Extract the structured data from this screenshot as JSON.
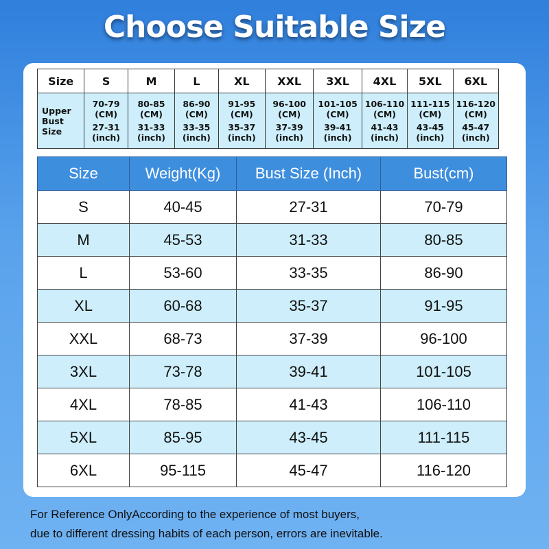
{
  "title": "Choose Suitable Size",
  "upper_table": {
    "size_header": "Size",
    "row_header": "Upper\nBust\nSize",
    "sizes": [
      "S",
      "M",
      "L",
      "XL",
      "XXL",
      "3XL",
      "4XL",
      "5XL",
      "6XL"
    ],
    "cm": [
      "70-79",
      "80-85",
      "86-90",
      "91-95",
      "96-100",
      "101-105",
      "106-110",
      "111-115",
      "116-120"
    ],
    "cm_unit": "(CM)",
    "inch": [
      "27-31",
      "31-33",
      "33-35",
      "35-37",
      "37-39",
      "39-41",
      "41-43",
      "43-45",
      "45-47"
    ],
    "inch_unit": "(inch)"
  },
  "main_table": {
    "headers": [
      "Size",
      "Weight(Kg)",
      "Bust Size (Inch)",
      "Bust(cm)"
    ],
    "rows": [
      [
        "S",
        "40-45",
        "27-31",
        "70-79"
      ],
      [
        "M",
        "45-53",
        "31-33",
        "80-85"
      ],
      [
        "L",
        "53-60",
        "33-35",
        "86-90"
      ],
      [
        "XL",
        "60-68",
        "35-37",
        "91-95"
      ],
      [
        "XXL",
        "68-73",
        "37-39",
        "96-100"
      ],
      [
        "3XL",
        "73-78",
        "39-41",
        "101-105"
      ],
      [
        "4XL",
        "78-85",
        "41-43",
        "106-110"
      ],
      [
        "5XL",
        "85-95",
        "43-45",
        "111-115"
      ],
      [
        "6XL",
        "95-115",
        "45-47",
        "116-120"
      ]
    ]
  },
  "note": {
    "line1": "For Reference OnlyAccording to the experience of most buyers,",
    "line2": "due to different dressing habits of each person, errors are inevitable."
  },
  "colors": {
    "background": "#4a95e6",
    "header_blue": "#3e8ede",
    "row_tint": "#cdeefa"
  }
}
